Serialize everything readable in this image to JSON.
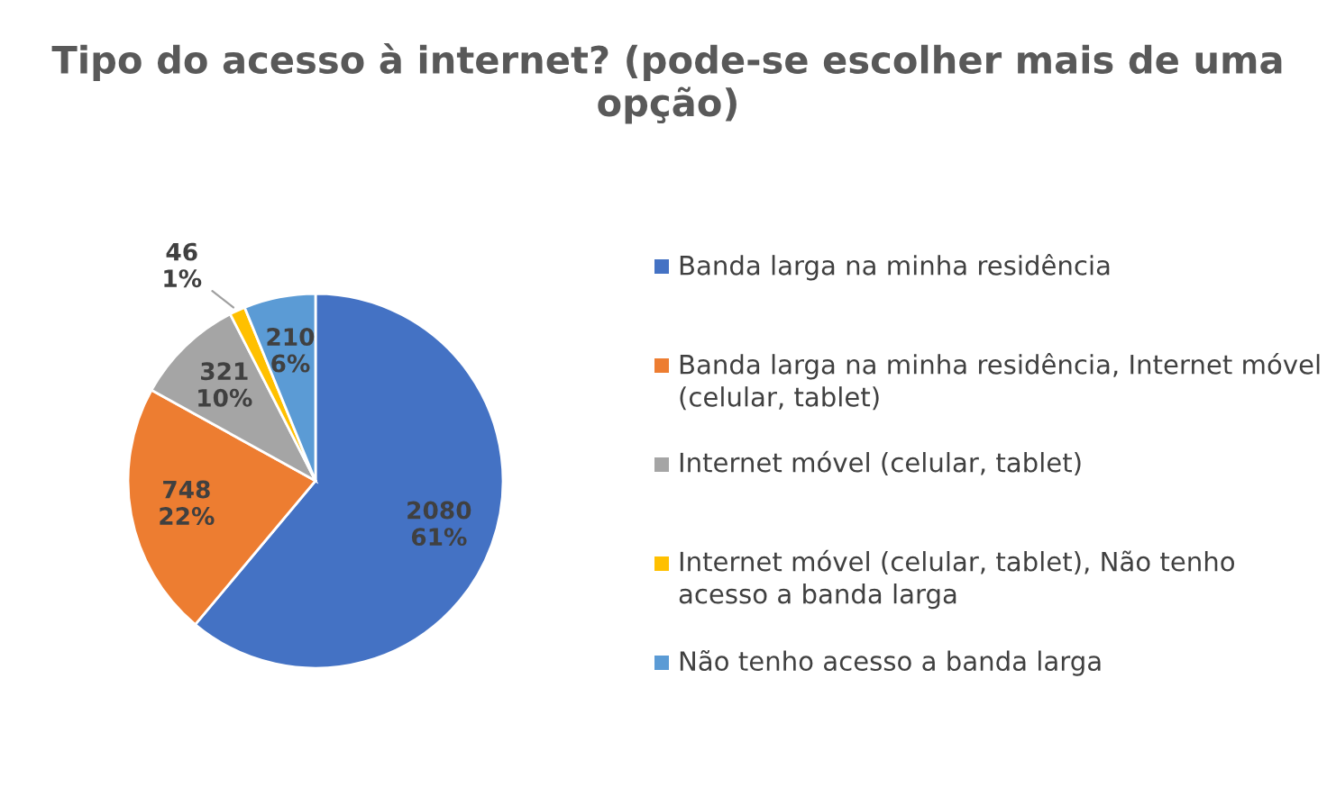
{
  "chart_data": {
    "type": "pie",
    "title": "Tipo do acesso à internet? (pode-se escolher mais de uma opção)",
    "categories": [
      "Banda larga na minha residência",
      "Banda larga na minha residência, Internet móvel (celular, tablet)",
      "Internet móvel (celular, tablet)",
      "Internet móvel (celular, tablet), Não tenho acesso a banda larga",
      "Não tenho acesso a banda larga"
    ],
    "values": [
      2080,
      748,
      321,
      46,
      210
    ],
    "value_labels": [
      "2080\n61%",
      "748\n22%",
      "321\n10%",
      "46\n1%",
      "210\n6%"
    ],
    "colors": [
      "#4472c4",
      "#ed7d31",
      "#a5a5a5",
      "#ffc000",
      "#5b9bd5"
    ],
    "legend": "right"
  }
}
